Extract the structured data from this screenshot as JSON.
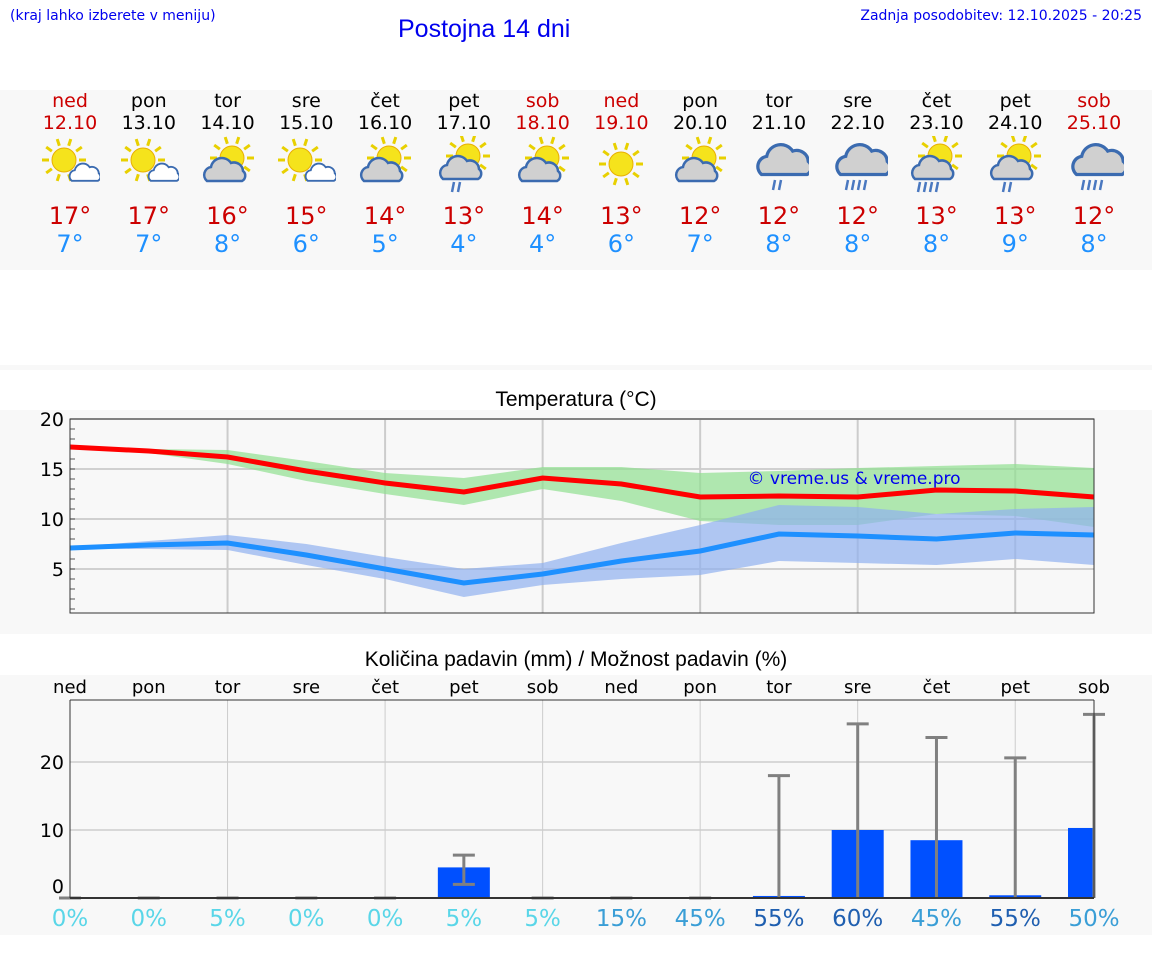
{
  "header": {
    "hint": "(kraj lahko izberete v meniju)",
    "title": "Postojna 14 dni",
    "updated": "Zadnja posodobitev: 12.10.2025 - 20:25"
  },
  "colors": {
    "weekend": "#cc0000",
    "max": "#ff0000",
    "min": "#1e90ff",
    "bar": "#0050ff"
  },
  "days": [
    {
      "name": "ned",
      "date": "12.10",
      "weekend": true,
      "icon": "sun-small-cloud",
      "max": "17°",
      "min": "7°"
    },
    {
      "name": "pon",
      "date": "13.10",
      "weekend": false,
      "icon": "sun-small-cloud",
      "max": "17°",
      "min": "7°"
    },
    {
      "name": "tor",
      "date": "14.10",
      "weekend": false,
      "icon": "sun-cloud",
      "max": "16°",
      "min": "8°"
    },
    {
      "name": "sre",
      "date": "15.10",
      "weekend": false,
      "icon": "sun-small-cloud",
      "max": "15°",
      "min": "6°"
    },
    {
      "name": "čet",
      "date": "16.10",
      "weekend": false,
      "icon": "sun-cloud",
      "max": "14°",
      "min": "5°"
    },
    {
      "name": "pet",
      "date": "17.10",
      "weekend": false,
      "icon": "sun-cloud-rain",
      "max": "13°",
      "min": "4°"
    },
    {
      "name": "sob",
      "date": "18.10",
      "weekend": true,
      "icon": "sun-cloud",
      "max": "14°",
      "min": "4°"
    },
    {
      "name": "ned",
      "date": "19.10",
      "weekend": true,
      "icon": "sun",
      "max": "13°",
      "min": "6°"
    },
    {
      "name": "pon",
      "date": "20.10",
      "weekend": false,
      "icon": "sun-cloud",
      "max": "12°",
      "min": "7°"
    },
    {
      "name": "tor",
      "date": "21.10",
      "weekend": false,
      "icon": "cloud-rain",
      "max": "12°",
      "min": "8°"
    },
    {
      "name": "sre",
      "date": "22.10",
      "weekend": false,
      "icon": "cloud-rain-heavy",
      "max": "12°",
      "min": "8°"
    },
    {
      "name": "čet",
      "date": "23.10",
      "weekend": false,
      "icon": "sun-cloud-rain-heavy",
      "max": "13°",
      "min": "8°"
    },
    {
      "name": "pet",
      "date": "24.10",
      "weekend": false,
      "icon": "sun-cloud-rain",
      "max": "13°",
      "min": "9°"
    },
    {
      "name": "sob",
      "date": "25.10",
      "weekend": true,
      "icon": "cloud-rain-heavy",
      "max": "12°",
      "min": "8°"
    }
  ],
  "chart_data": [
    {
      "type": "line",
      "title": "Temperatura (°C)",
      "ylim": [
        0.6,
        20
      ],
      "yticks": [
        "20",
        "15",
        "10",
        "5"
      ],
      "watermark": "© vreme.us & vreme.pro",
      "series": [
        {
          "name": "max",
          "values": [
            17.2,
            16.8,
            16.2,
            14.8,
            13.6,
            12.7,
            14.1,
            13.5,
            12.2,
            12.3,
            12.2,
            12.9,
            12.8,
            12.2
          ],
          "low": [
            17.2,
            16.6,
            15.5,
            13.8,
            12.5,
            11.4,
            13.0,
            11.8,
            9.8,
            9.4,
            9.4,
            10.5,
            10.3,
            9.2
          ],
          "high": [
            17.3,
            17.0,
            16.9,
            15.8,
            14.6,
            14.1,
            15.2,
            15.2,
            14.6,
            14.8,
            15.1,
            15.3,
            15.5,
            15.1
          ]
        },
        {
          "name": "min",
          "values": [
            7.1,
            7.4,
            7.6,
            6.4,
            5.0,
            3.6,
            4.5,
            5.8,
            6.8,
            8.5,
            8.3,
            8.0,
            8.6,
            8.4
          ],
          "low": [
            7.0,
            7.0,
            6.9,
            5.4,
            4.0,
            2.2,
            3.4,
            4.0,
            4.4,
            5.8,
            5.6,
            5.4,
            6.0,
            5.4
          ],
          "high": [
            7.2,
            7.8,
            8.4,
            7.5,
            6.2,
            5.0,
            5.6,
            7.6,
            9.4,
            11.4,
            11.2,
            10.5,
            11.0,
            11.2
          ]
        }
      ]
    },
    {
      "type": "bar",
      "title": "Količina padavin (mm) / Možnost padavin (%)",
      "ylim": [
        0,
        29.5
      ],
      "yticks": [
        "20",
        "10",
        "0"
      ],
      "categories": [
        "ned",
        "pon",
        "tor",
        "sre",
        "čet",
        "pet",
        "sob",
        "ned",
        "pon",
        "tor",
        "sre",
        "čet",
        "pet",
        "sob"
      ],
      "values": [
        0,
        0,
        0,
        0,
        0,
        4.5,
        0,
        0,
        0,
        0.3,
        10,
        8.5,
        0.4,
        10.3
      ],
      "err_low": [
        0,
        0,
        0,
        0,
        0,
        2.0,
        0,
        0,
        0,
        0,
        0,
        0,
        0,
        0
      ],
      "err_high": [
        0,
        0,
        0,
        0,
        0,
        6.3,
        0,
        0,
        0,
        18,
        25.6,
        23.6,
        20.6,
        27
      ],
      "probability": [
        "0%",
        "0%",
        "5%",
        "0%",
        "0%",
        "5%",
        "5%",
        "15%",
        "45%",
        "55%",
        "60%",
        "45%",
        "55%",
        "50%"
      ],
      "probability_colors": [
        "#5ad6e8",
        "#5ad6e8",
        "#5ad6e8",
        "#5ad6e8",
        "#5ad6e8",
        "#5ad6e8",
        "#5ad6e8",
        "#3a9ed6",
        "#3a9ed6",
        "#1f5fb0",
        "#1f5fb0",
        "#3a9ed6",
        "#1f5fb0",
        "#3a9ed6"
      ]
    }
  ]
}
